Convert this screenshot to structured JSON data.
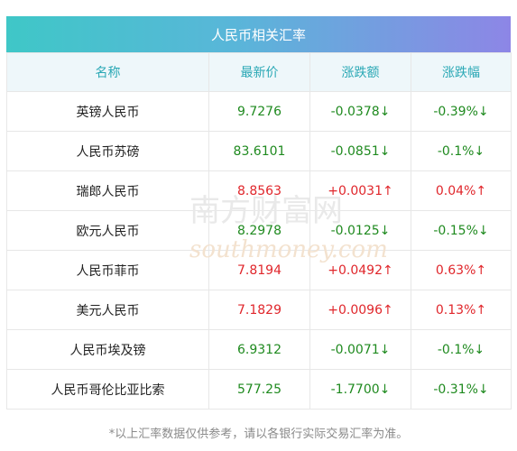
{
  "title": "人民币相关汇率",
  "headers": [
    "名称",
    "最新价",
    "涨跌额",
    "涨跌幅"
  ],
  "rows": [
    {
      "name": "英镑人民币",
      "price": "9.7276",
      "change": "-0.0378↓",
      "pct": "-0.39%↓",
      "dir": "down"
    },
    {
      "name": "人民币苏磅",
      "price": "83.6101",
      "change": "-0.0851↓",
      "pct": "-0.1%↓",
      "dir": "down"
    },
    {
      "name": "瑞郎人民币",
      "price": "8.8563",
      "change": "+0.0031↑",
      "pct": "0.04%↑",
      "dir": "up"
    },
    {
      "name": "欧元人民币",
      "price": "8.2978",
      "change": "-0.0125↓",
      "pct": "-0.15%↓",
      "dir": "down"
    },
    {
      "name": "人民币菲币",
      "price": "7.8194",
      "change": "+0.0492↑",
      "pct": "0.63%↑",
      "dir": "up"
    },
    {
      "name": "美元人民币",
      "price": "7.1829",
      "change": "+0.0096↑",
      "pct": "0.13%↑",
      "dir": "up"
    },
    {
      "name": "人民币埃及镑",
      "price": "6.9312",
      "change": "-0.0071↓",
      "pct": "-0.1%↓",
      "dir": "down"
    },
    {
      "name": "人民币哥伦比亚比索",
      "price": "577.25",
      "change": "-1.7700↓",
      "pct": "-0.31%↓",
      "dir": "down"
    }
  ],
  "footnote": "*以上汇率数据仅供参考，请以各银行实际交易汇率为准。",
  "watermark": {
    "cn": "南方财富网",
    "en": "southmoney.com"
  },
  "colors": {
    "up": "#e0262b",
    "down": "#1f8a1f",
    "header_text": "#2aa8b5"
  }
}
